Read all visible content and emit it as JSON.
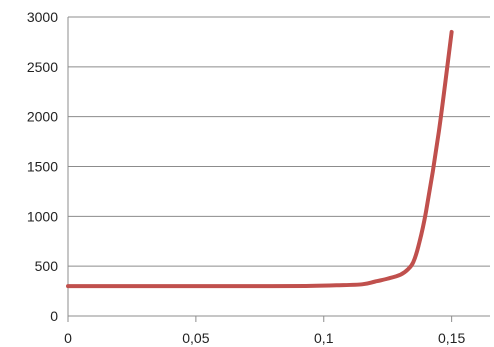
{
  "chart_data": {
    "type": "line",
    "title": "",
    "xlabel": "",
    "ylabel": "",
    "xlim": [
      0,
      0.165
    ],
    "ylim": [
      0,
      3000
    ],
    "grid": {
      "y": true,
      "x": false
    },
    "x_ticks": [
      {
        "value": 0,
        "label": "0"
      },
      {
        "value": 0.05,
        "label": "0,05"
      },
      {
        "value": 0.1,
        "label": "0,1"
      },
      {
        "value": 0.15,
        "label": "0,15"
      }
    ],
    "y_ticks": [
      {
        "value": 0,
        "label": "0"
      },
      {
        "value": 500,
        "label": "500"
      },
      {
        "value": 1000,
        "label": "1000"
      },
      {
        "value": 1500,
        "label": "1500"
      },
      {
        "value": 2000,
        "label": "2000"
      },
      {
        "value": 2500,
        "label": "2500"
      },
      {
        "value": 3000,
        "label": "3000"
      }
    ],
    "series": [
      {
        "color": "#c0504d",
        "points": [
          {
            "x": 0.0,
            "y": 300
          },
          {
            "x": 0.02,
            "y": 300
          },
          {
            "x": 0.05,
            "y": 300
          },
          {
            "x": 0.08,
            "y": 300
          },
          {
            "x": 0.095,
            "y": 302
          },
          {
            "x": 0.105,
            "y": 308
          },
          {
            "x": 0.115,
            "y": 318
          },
          {
            "x": 0.12,
            "y": 345
          },
          {
            "x": 0.125,
            "y": 375
          },
          {
            "x": 0.13,
            "y": 415
          },
          {
            "x": 0.133,
            "y": 470
          },
          {
            "x": 0.135,
            "y": 540
          },
          {
            "x": 0.137,
            "y": 700
          },
          {
            "x": 0.14,
            "y": 1050
          },
          {
            "x": 0.145,
            "y": 1850
          },
          {
            "x": 0.15,
            "y": 2850
          }
        ]
      }
    ]
  }
}
